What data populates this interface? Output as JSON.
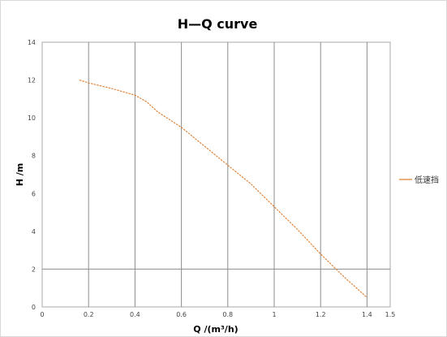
{
  "chart_data": {
    "type": "line",
    "title": "H—Q curve",
    "xlabel": "Q /(m³/h)",
    "ylabel": "H /m",
    "xlim": [
      0,
      1.5
    ],
    "ylim": [
      0,
      14
    ],
    "x_ticks": [
      "0",
      "0.2",
      "0.4",
      "0.6",
      "0.8",
      "1",
      "1.2",
      "1.4",
      "1.5"
    ],
    "y_ticks": [
      "0",
      "2",
      "4",
      "6",
      "8",
      "10",
      "12",
      "14"
    ],
    "grid": true,
    "legend_position": "right",
    "series": [
      {
        "name": "低速挡",
        "color": "#E07B2A",
        "x": [
          0.16,
          0.2,
          0.3,
          0.4,
          0.45,
          0.5,
          0.6,
          0.7,
          0.8,
          0.9,
          1.0,
          1.1,
          1.2,
          1.3,
          1.4
        ],
        "y": [
          12.0,
          11.85,
          11.55,
          11.2,
          10.85,
          10.3,
          9.5,
          8.5,
          7.5,
          6.5,
          5.3,
          4.1,
          2.8,
          1.6,
          0.5
        ]
      }
    ]
  }
}
